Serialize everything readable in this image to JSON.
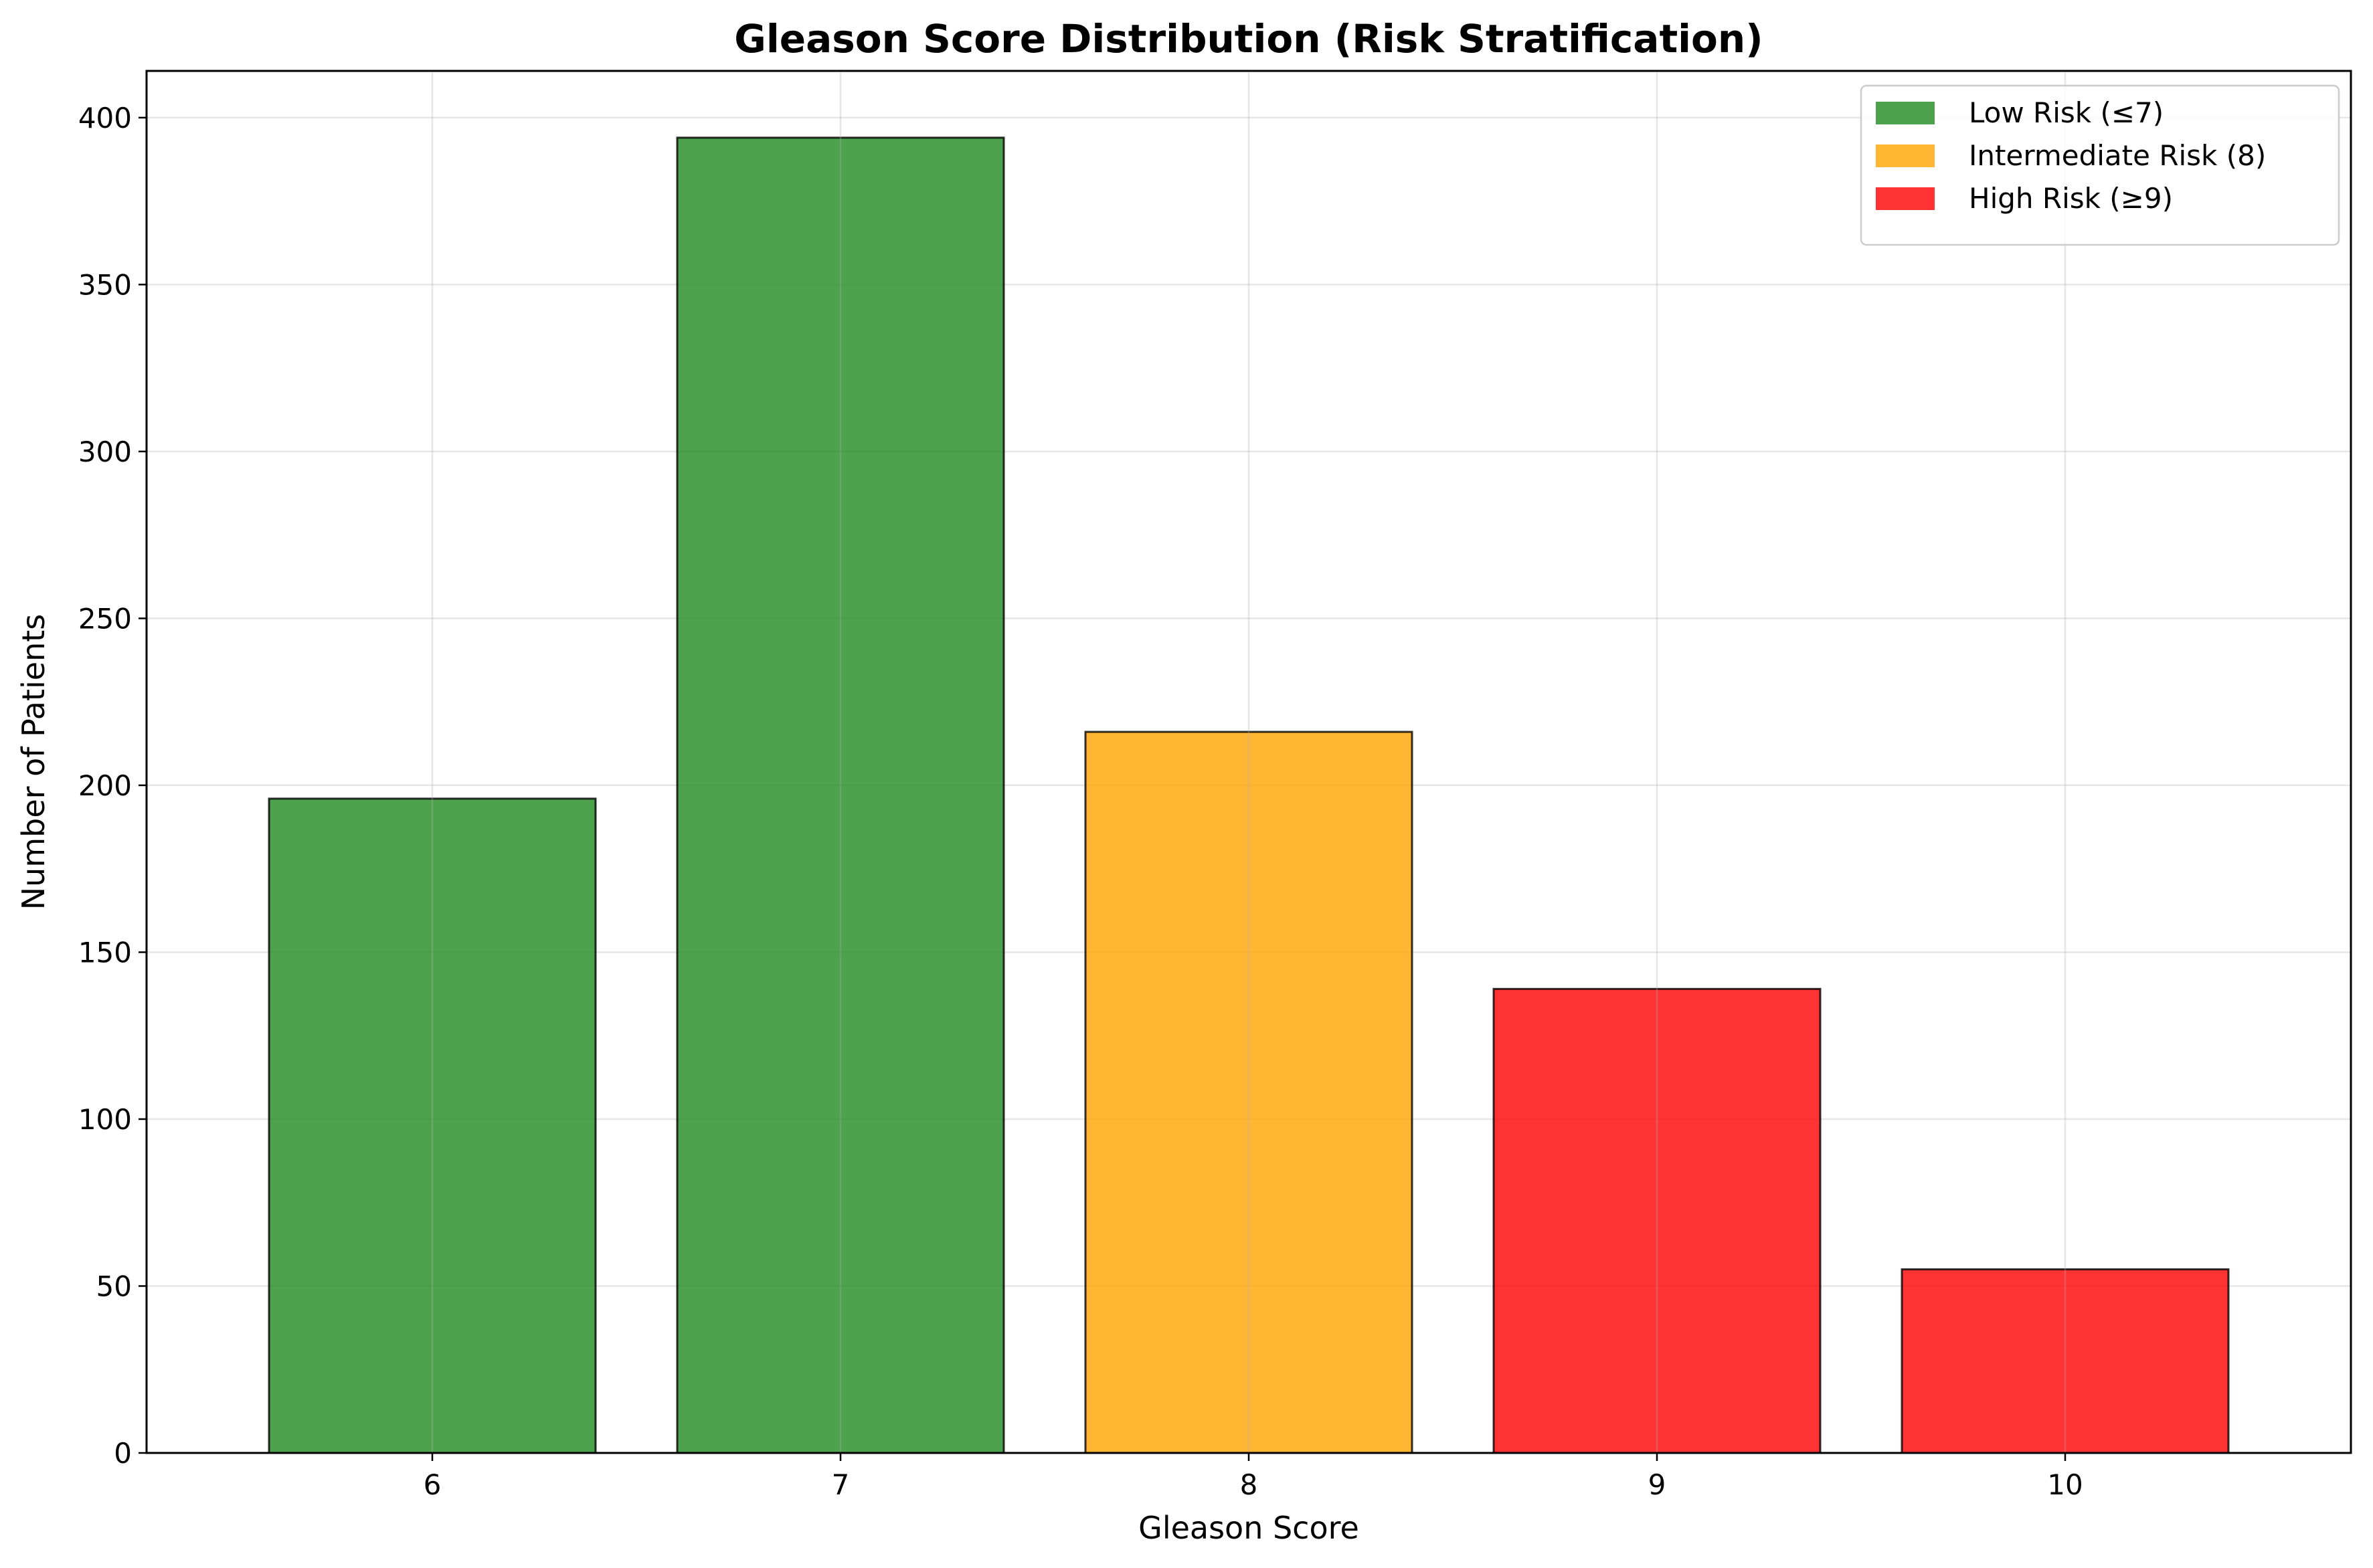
{
  "chart_data": {
    "type": "bar",
    "title": "Gleason Score Distribution (Risk Stratification)",
    "xlabel": "Gleason Score",
    "ylabel": "Number of Patients",
    "categories": [
      "6",
      "7",
      "8",
      "9",
      "10"
    ],
    "values": [
      196,
      394,
      216,
      139,
      55
    ],
    "bar_colors": [
      "#228B22",
      "#228B22",
      "#FFA500",
      "#FF0000",
      "#FF0000"
    ],
    "bar_alpha": 0.8,
    "ylim": [
      0,
      414
    ],
    "yticks": [
      0,
      50,
      100,
      150,
      200,
      250,
      300,
      350,
      400
    ],
    "grid": true,
    "legend": {
      "placement": "top-right",
      "entries": [
        {
          "label": "Low Risk (≤7)",
          "color": "#228B22"
        },
        {
          "label": "Intermediate Risk (8)",
          "color": "#FFA500"
        },
        {
          "label": "High Risk (≥9)",
          "color": "#FF0000"
        }
      ]
    }
  }
}
